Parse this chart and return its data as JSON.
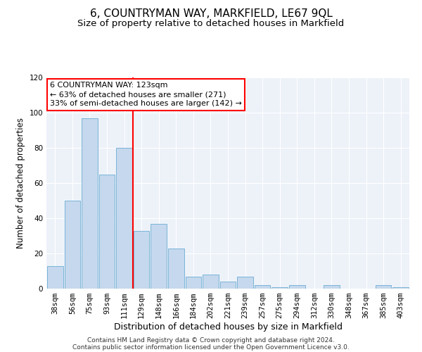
{
  "title": "6, COUNTRYMAN WAY, MARKFIELD, LE67 9QL",
  "subtitle": "Size of property relative to detached houses in Markfield",
  "xlabel": "Distribution of detached houses by size in Markfield",
  "ylabel": "Number of detached properties",
  "bar_labels": [
    "38sqm",
    "56sqm",
    "75sqm",
    "93sqm",
    "111sqm",
    "129sqm",
    "148sqm",
    "166sqm",
    "184sqm",
    "202sqm",
    "221sqm",
    "239sqm",
    "257sqm",
    "275sqm",
    "294sqm",
    "312sqm",
    "330sqm",
    "348sqm",
    "367sqm",
    "385sqm",
    "403sqm"
  ],
  "bar_values": [
    13,
    50,
    97,
    65,
    80,
    33,
    37,
    23,
    7,
    8,
    4,
    7,
    2,
    1,
    2,
    0,
    2,
    0,
    0,
    2,
    1
  ],
  "bar_color": "#c5d8ed",
  "bar_edge_color": "#7ab4d8",
  "vline_x": 4.5,
  "vline_color": "red",
  "ylim": [
    0,
    120
  ],
  "yticks": [
    0,
    20,
    40,
    60,
    80,
    100,
    120
  ],
  "annotation_line1": "6 COUNTRYMAN WAY: 123sqm",
  "annotation_line2": "← 63% of detached houses are smaller (271)",
  "annotation_line3": "33% of semi-detached houses are larger (142) →",
  "bg_color": "#edf2f9",
  "grid_color": "white",
  "footnote1": "Contains HM Land Registry data © Crown copyright and database right 2024.",
  "footnote2": "Contains public sector information licensed under the Open Government Licence v3.0.",
  "title_fontsize": 11,
  "subtitle_fontsize": 9.5,
  "xlabel_fontsize": 9,
  "ylabel_fontsize": 8.5,
  "tick_fontsize": 7.5,
  "annot_fontsize": 8,
  "footnote_fontsize": 6.5
}
